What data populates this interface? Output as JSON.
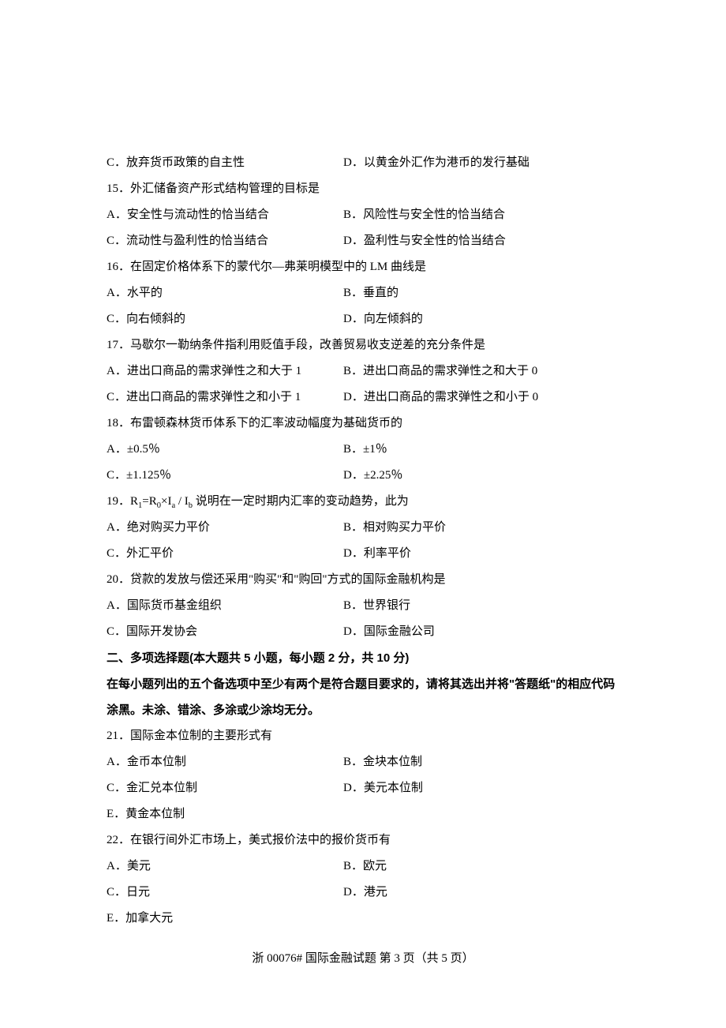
{
  "q14": {
    "optC": "C．放弃货币政策的自主性",
    "optD": "D．以黄金外汇作为港币的发行基础"
  },
  "q15": {
    "stem": "15．外汇储备资产形式结构管理的目标是",
    "optA": "A．安全性与流动性的恰当结合",
    "optB": "B．风险性与安全性的恰当结合",
    "optC": "C．流动性与盈利性的恰当结合",
    "optD": "D．盈利性与安全性的恰当结合"
  },
  "q16": {
    "stem": "16．在固定价格体系下的蒙代尔—弗莱明模型中的 LM 曲线是",
    "optA": "A．水平的",
    "optB": "B．垂直的",
    "optC": "C．向右倾斜的",
    "optD": "D．向左倾斜的"
  },
  "q17": {
    "stem": "17．马歇尔一勒纳条件指利用贬值手段，改善贸易收支逆差的充分条件是",
    "optA": "A．进出口商品的需求弹性之和大于 1",
    "optB": "B．进出口商品的需求弹性之和大于 0",
    "optC": "C．进出口商品的需求弹性之和小于 1",
    "optD": "D．进出口商品的需求弹性之和小于 0"
  },
  "q18": {
    "stem": "18．布雷顿森林货币体系下的汇率波动幅度为基础货币的",
    "optA": "A．±0.5％",
    "optB": "B．±1％",
    "optC": "C．±1.125％",
    "optD": "D．±2.25％"
  },
  "q19": {
    "stem_prefix": "19．R",
    "stem_sub1": "1",
    "stem_mid1": "=R",
    "stem_sub2": "0",
    "stem_mid2": "×I",
    "stem_sub3": "a",
    "stem_mid3": " / I",
    "stem_sub4": "b",
    "stem_suffix": " 说明在一定时期内汇率的变动趋势，此为",
    "optA": "A．绝对购买力平价",
    "optB": "B．相对购买力平价",
    "optC": "C．外汇平价",
    "optD": "D．利率平价"
  },
  "q20": {
    "stem": "20．贷款的发放与偿还采用\"购买\"和\"购回\"方式的国际金融机构是",
    "optA": "A．国际货币基金组织",
    "optB": "B．世界银行",
    "optC": "C．国际开发协会",
    "optD": "D．国际金融公司"
  },
  "section2": {
    "header": "二、多项选择题(本大题共 5 小题，每小题 2 分，共 10 分)",
    "instruction": "在每小题列出的五个备选项中至少有两个是符合题目要求的，请将其选出并将\"答题纸\"的相应代码涂黑。未涂、错涂、多涂或少涂均无分。"
  },
  "q21": {
    "stem": "21．国际金本位制的主要形式有",
    "optA": "A．金币本位制",
    "optB": "B．金块本位制",
    "optC": "C．金汇兑本位制",
    "optD": "D．美元本位制",
    "optE": "E．黄金本位制"
  },
  "q22": {
    "stem": "22．在银行间外汇市场上，美式报价法中的报价货币有",
    "optA": "A．美元",
    "optB": "B．欧元",
    "optC": "C．日元",
    "optD": "D．港元",
    "optE": "E．加拿大元"
  },
  "footer": "浙 00076#  国际金融试题  第 3 页（共 5 页）"
}
